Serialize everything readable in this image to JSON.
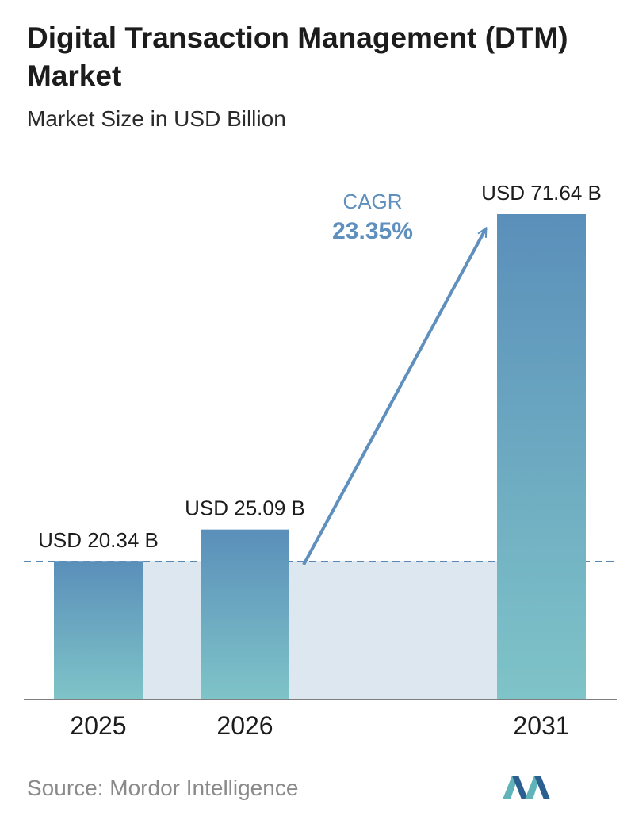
{
  "title": "Digital Transaction Management (DTM) Market",
  "subtitle": "Market Size in USD Billion",
  "source": "Source:  Mordor Intelligence",
  "cagr": {
    "label": "CAGR",
    "value": "23.35%"
  },
  "colors": {
    "bar_top": "#5a8fba",
    "bar_bottom": "#7fc4c8",
    "band": "#dde7f0",
    "cagr": "#5e8fbd",
    "text": "#1c1c1c",
    "logo_dark": "#2a5f8f",
    "logo_light": "#5fb3b9"
  },
  "chart_data": {
    "type": "bar",
    "categories": [
      "2025",
      "2026",
      "2031"
    ],
    "values": [
      20.34,
      25.09,
      71.64
    ],
    "value_labels": [
      "USD 20.34 B",
      "USD 25.09 B",
      "USD 71.64 B"
    ],
    "reference_line_value": 20.34
  }
}
